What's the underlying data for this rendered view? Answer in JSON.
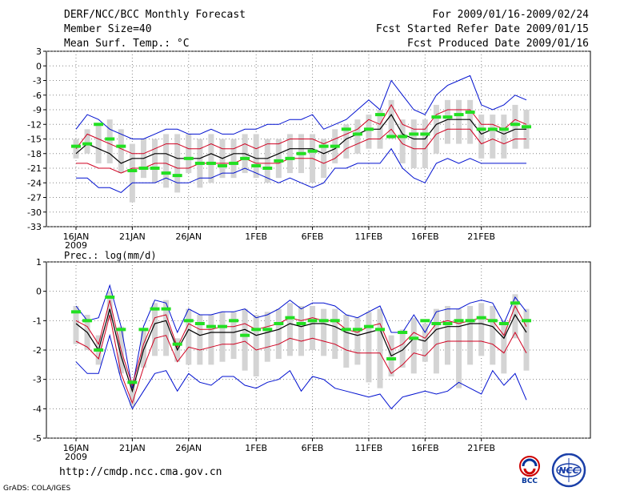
{
  "header": {
    "title": "DERF/NCC/BCC Monthly Forecast",
    "member": "Member Size=40",
    "variable": "Mean Surf. Temp.: °C",
    "period": "For 2009/01/16-2009/02/24",
    "refer": "Fcst Started Refer Date 2009/01/15",
    "produced": "Fcst Produced Date 2009/01/16"
  },
  "footer": {
    "url": "http://cmdp.ncc.cma.gov.cn",
    "grads": "GrADS: COLA/IGES"
  },
  "logos": {
    "left": "BCC",
    "right": "NCC"
  },
  "colors": {
    "box": "#d4d4d4",
    "mean": "#000000",
    "inner": "#d00020",
    "outer": "#0010d0",
    "obs": "#22e022"
  },
  "chart_data": [
    {
      "type": "line",
      "title": "Mean Surf. Temp.: °C",
      "days": 40,
      "x_ticks": [
        {
          "day": 0,
          "label": "16JAN",
          "sub": "2009"
        },
        {
          "day": 5,
          "label": "21JAN"
        },
        {
          "day": 10,
          "label": "26JAN"
        },
        {
          "day": 16,
          "label": "1FEB"
        },
        {
          "day": 21,
          "label": "6FEB"
        },
        {
          "day": 26,
          "label": "11FEB"
        },
        {
          "day": 31,
          "label": "16FEB"
        },
        {
          "day": 36,
          "label": "21FEB"
        }
      ],
      "ylim": [
        -33,
        3
      ],
      "yticks": [
        3,
        0,
        -3,
        -6,
        -9,
        -12,
        -15,
        -18,
        -21,
        -24,
        -27,
        -30,
        -33
      ],
      "series": [
        {
          "name": "max",
          "role": "outer",
          "values": [
            -13,
            -10,
            -11,
            -13,
            -14,
            -15,
            -15,
            -14,
            -13,
            -13,
            -14,
            -14,
            -13,
            -14,
            -14,
            -13,
            -13,
            -12,
            -12,
            -11,
            -11,
            -10,
            -13,
            -12,
            -11,
            -9,
            -7,
            -9,
            -3,
            -6,
            -9,
            -10,
            -6,
            -4,
            -3,
            -2,
            -8,
            -9,
            -8,
            -6,
            -7
          ]
        },
        {
          "name": "p75",
          "role": "inner",
          "values": [
            -17,
            -14,
            -15,
            -16,
            -17,
            -18,
            -18,
            -17,
            -16,
            -16,
            -17,
            -17,
            -16,
            -17,
            -17,
            -16,
            -17,
            -16,
            -16,
            -15,
            -15,
            -15,
            -16,
            -15,
            -14,
            -13,
            -11,
            -12,
            -8,
            -12,
            -13,
            -13,
            -10,
            -9,
            -9,
            -9,
            -12,
            -12,
            -13,
            -11,
            -12
          ]
        },
        {
          "name": "mean",
          "role": "mean",
          "values": [
            -18,
            -16,
            -17,
            -18,
            -20,
            -19,
            -19,
            -18,
            -18,
            -19,
            -19,
            -19,
            -18,
            -19,
            -18,
            -18,
            -19,
            -19,
            -18,
            -17,
            -17,
            -17,
            -18,
            -17,
            -15,
            -14,
            -13,
            -13,
            -10,
            -14,
            -15,
            -15,
            -12,
            -11,
            -11,
            -11,
            -14,
            -13,
            -14,
            -13,
            -13
          ]
        },
        {
          "name": "p25",
          "role": "inner",
          "values": [
            -20,
            -20,
            -21,
            -21,
            -22,
            -21,
            -21,
            -20,
            -20,
            -21,
            -21,
            -20,
            -20,
            -20,
            -20,
            -19,
            -20,
            -20,
            -20,
            -19,
            -19,
            -19,
            -20,
            -19,
            -17,
            -16,
            -15,
            -15,
            -13,
            -16,
            -17,
            -17,
            -14,
            -13,
            -13,
            -13,
            -16,
            -15,
            -16,
            -15,
            -15
          ]
        },
        {
          "name": "min",
          "role": "outer",
          "values": [
            -23,
            -23,
            -25,
            -25,
            -26,
            -24,
            -24,
            -24,
            -23,
            -24,
            -24,
            -23,
            -23,
            -22,
            -22,
            -21,
            -22,
            -23,
            -24,
            -23,
            -24,
            -25,
            -24,
            -21,
            -21,
            -20,
            -20,
            -20,
            -17,
            -21,
            -23,
            -24,
            -20,
            -19,
            -20,
            -19,
            -20,
            -20,
            -20,
            -20,
            -20
          ]
        },
        {
          "name": "observed",
          "role": "obs",
          "values": [
            -16.5,
            -16,
            -12,
            -15,
            -16.5,
            -21.5,
            -21,
            -21,
            -22,
            -22.5,
            -19,
            -20,
            -20,
            -20.5,
            -20,
            -19,
            -20.5,
            -21,
            -19.5,
            -19,
            -18,
            -17.5,
            -16.5,
            -16.5,
            -13,
            -14,
            -13,
            -10,
            -14.5,
            -14.5,
            -14,
            -14,
            -10.5,
            -10.5,
            -10,
            -9.5,
            -13,
            -13,
            -13,
            -12,
            -12.5
          ]
        }
      ],
      "boxes": {
        "high": [
          -15,
          -13,
          -12,
          -11,
          -13,
          -16,
          -15,
          -15,
          -14,
          -14,
          -14,
          -15,
          -14,
          -15,
          -15,
          -14,
          -14,
          -15,
          -15,
          -14,
          -14,
          -14,
          -15,
          -13,
          -12,
          -11,
          -10,
          -9,
          -7,
          -11,
          -11,
          -11,
          -8,
          -7,
          -7,
          -7,
          -10,
          -10,
          -10,
          -8,
          -9
        ],
        "low": [
          -19,
          -18,
          -20,
          -20,
          -22,
          -28,
          -23,
          -24,
          -25,
          -26,
          -22,
          -25,
          -24,
          -23,
          -23,
          -22,
          -23,
          -24,
          -23,
          -22,
          -22,
          -24,
          -23,
          -20,
          -19,
          -18,
          -17,
          -17,
          -15,
          -20,
          -21,
          -21,
          -18,
          -16,
          -16,
          -16,
          -19,
          -19,
          -19,
          -17,
          -17
        ]
      }
    },
    {
      "type": "line",
      "title": "Prec.: log(mm/d)",
      "days": 40,
      "x_ticks": [
        {
          "day": 0,
          "label": "16JAN",
          "sub": "2009"
        },
        {
          "day": 5,
          "label": "21JAN"
        },
        {
          "day": 10,
          "label": "26JAN"
        },
        {
          "day": 16,
          "label": "1FEB"
        },
        {
          "day": 21,
          "label": "6FEB"
        },
        {
          "day": 26,
          "label": "11FEB"
        },
        {
          "day": 31,
          "label": "16FEB"
        },
        {
          "day": 36,
          "label": "21FEB"
        }
      ],
      "ylim": [
        -5,
        1
      ],
      "yticks": [
        1,
        0,
        -1,
        -2,
        -3,
        -4,
        -5
      ],
      "series": [
        {
          "name": "max",
          "role": "outer",
          "values": [
            -0.5,
            -1.0,
            -0.9,
            0.2,
            -1.2,
            -3.3,
            -1.2,
            -0.3,
            -0.4,
            -1.4,
            -0.6,
            -0.8,
            -0.8,
            -0.7,
            -0.7,
            -0.6,
            -0.9,
            -0.8,
            -0.6,
            -0.3,
            -0.6,
            -0.4,
            -0.4,
            -0.5,
            -0.8,
            -0.9,
            -0.7,
            -0.5,
            -1.4,
            -1.4,
            -0.8,
            -1.4,
            -0.7,
            -0.6,
            -0.6,
            -0.4,
            -0.3,
            -0.4,
            -1.1,
            -0.2,
            -0.7
          ]
        },
        {
          "name": "p75",
          "role": "inner",
          "values": [
            -1.0,
            -1.2,
            -1.8,
            -0.3,
            -2.0,
            -3.2,
            -1.8,
            -0.9,
            -0.8,
            -1.9,
            -1.1,
            -1.3,
            -1.3,
            -1.2,
            -1.2,
            -1.1,
            -1.3,
            -1.2,
            -1.1,
            -0.9,
            -1.0,
            -0.9,
            -1.0,
            -1.0,
            -1.3,
            -1.4,
            -1.2,
            -1.1,
            -2.0,
            -1.8,
            -1.4,
            -1.6,
            -1.1,
            -1.0,
            -1.1,
            -1.0,
            -0.9,
            -1.0,
            -1.5,
            -0.5,
            -1.2
          ]
        },
        {
          "name": "mean",
          "role": "mean",
          "values": [
            -1.1,
            -1.4,
            -2.0,
            -0.6,
            -2.2,
            -3.4,
            -2.0,
            -1.1,
            -1.0,
            -2.0,
            -1.3,
            -1.5,
            -1.4,
            -1.4,
            -1.4,
            -1.3,
            -1.5,
            -1.4,
            -1.3,
            -1.1,
            -1.2,
            -1.1,
            -1.1,
            -1.2,
            -1.4,
            -1.5,
            -1.4,
            -1.3,
            -2.2,
            -2.0,
            -1.6,
            -1.7,
            -1.3,
            -1.2,
            -1.2,
            -1.1,
            -1.1,
            -1.2,
            -1.6,
            -0.8,
            -1.4
          ]
        },
        {
          "name": "p25",
          "role": "inner",
          "values": [
            -1.7,
            -1.9,
            -2.3,
            -0.8,
            -2.8,
            -3.8,
            -2.6,
            -1.6,
            -1.5,
            -2.4,
            -1.9,
            -2.0,
            -1.9,
            -1.8,
            -1.8,
            -1.7,
            -2.0,
            -1.9,
            -1.8,
            -1.6,
            -1.7,
            -1.6,
            -1.7,
            -1.8,
            -2.0,
            -2.1,
            -2.1,
            -2.1,
            -2.8,
            -2.5,
            -2.1,
            -2.2,
            -1.8,
            -1.7,
            -1.7,
            -1.7,
            -1.7,
            -1.8,
            -2.1,
            -1.4,
            -2.1
          ]
        },
        {
          "name": "min",
          "role": "outer",
          "values": [
            -2.4,
            -2.8,
            -2.8,
            -1.5,
            -3.0,
            -4.0,
            -3.4,
            -2.8,
            -2.7,
            -3.4,
            -2.8,
            -3.1,
            -3.2,
            -2.9,
            -2.9,
            -3.2,
            -3.3,
            -3.1,
            -3.0,
            -2.7,
            -3.4,
            -2.9,
            -3.0,
            -3.3,
            -3.4,
            -3.5,
            -3.6,
            -3.5,
            -4.0,
            -3.6,
            -3.5,
            -3.4,
            -3.5,
            -3.4,
            -3.1,
            -3.3,
            -3.5,
            -2.7,
            -3.2,
            -2.8,
            -3.7
          ]
        },
        {
          "name": "observed",
          "role": "obs",
          "values": [
            -0.7,
            -1.0,
            -2.0,
            -0.2,
            -1.3,
            -3.1,
            -1.3,
            -0.6,
            -0.6,
            -1.8,
            -1.0,
            -1.1,
            -1.2,
            -1.2,
            -1.0,
            -1.5,
            -1.3,
            -1.3,
            -1.1,
            -0.9,
            -1.1,
            -1.0,
            -1.0,
            -1.0,
            -1.3,
            -1.3,
            -1.2,
            -1.3,
            -2.3,
            -1.4,
            -1.6,
            -1.0,
            -1.1,
            -1.1,
            -1.0,
            -1.0,
            -0.9,
            -1.0,
            -1.1,
            -0.4,
            -1.0
          ]
        }
      ],
      "boxes": {
        "high": [
          -0.5,
          -0.8,
          -1.5,
          0.0,
          -1.2,
          -3.0,
          -1.3,
          -0.4,
          -0.3,
          -1.6,
          -0.6,
          -0.8,
          -0.8,
          -0.7,
          -0.7,
          -0.6,
          -0.8,
          -0.7,
          -0.6,
          -0.4,
          -0.5,
          -0.5,
          -0.6,
          -0.6,
          -0.8,
          -0.9,
          -0.7,
          -0.6,
          -1.5,
          -1.3,
          -0.9,
          -1.1,
          -0.6,
          -0.5,
          -0.6,
          -0.5,
          -0.4,
          -0.5,
          -1.0,
          -0.1,
          -0.6
        ]
      },
      "boxes_low": [
        -1.8,
        -2.0,
        -2.5,
        -1.0,
        -2.8,
        -3.9,
        -2.6,
        -2.2,
        -2.2,
        -2.4,
        -2.5,
        -2.5,
        -2.5,
        -2.4,
        -2.3,
        -2.7,
        -2.9,
        -2.4,
        -2.3,
        -2.2,
        -2.2,
        -2.0,
        -2.2,
        -2.3,
        -2.6,
        -2.5,
        -3.1,
        -3.3,
        -2.9,
        -2.6,
        -2.8,
        -2.4,
        -2.8,
        -2.5,
        -3.3,
        -2.5,
        -2.2,
        -2.5,
        -2.8,
        -1.6,
        -2.7
      ]
    }
  ]
}
